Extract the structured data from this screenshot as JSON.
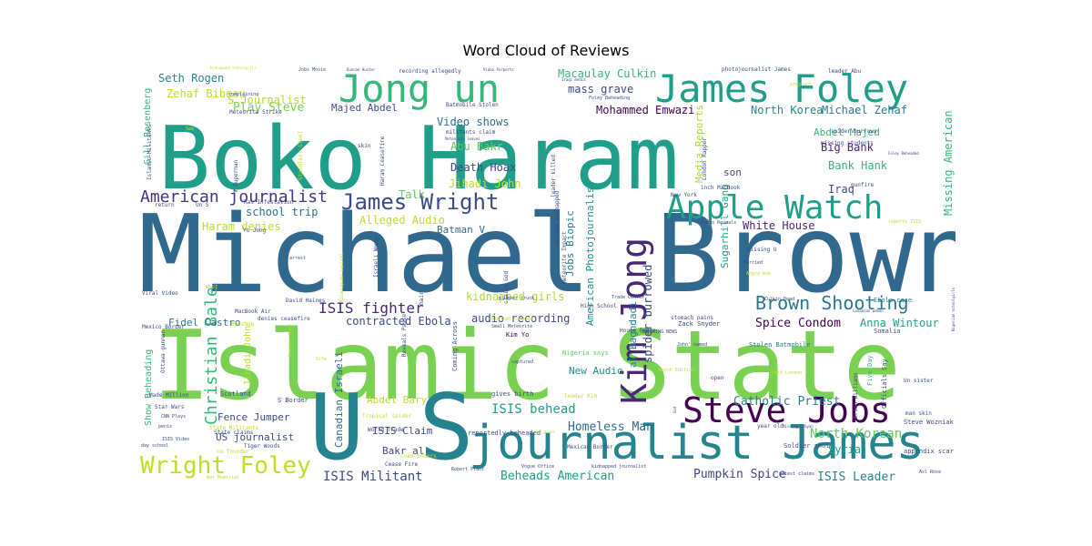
{
  "chart_data": {
    "type": "wordcloud",
    "title": "Word Cloud of Reviews",
    "words": [
      {
        "text": "Michael Brown",
        "color": "#31688e",
        "weight": 100
      },
      {
        "text": "Islamic State",
        "color": "#7ad151",
        "weight": 100
      },
      {
        "text": "Boko Haram",
        "color": "#1f9e89",
        "weight": 95
      },
      {
        "text": "U S",
        "color": "#26828e",
        "weight": 90
      },
      {
        "text": "journalist James",
        "color": "#25858e",
        "weight": 60
      },
      {
        "text": "Jong un",
        "color": "#35b779",
        "weight": 55
      },
      {
        "text": "James Foley",
        "color": "#1f9e89",
        "weight": 55
      },
      {
        "text": "Apple Watch",
        "color": "#1f9e89",
        "weight": 42
      },
      {
        "text": "Kim Jong",
        "color": "#482878",
        "weight": 42
      },
      {
        "text": "Steve Jobs",
        "color": "#440154",
        "weight": 38
      },
      {
        "text": "Wright Foley",
        "color": "#bddf26",
        "weight": 28
      },
      {
        "text": "Brown Shooting",
        "color": "#2a788e",
        "weight": 22
      },
      {
        "text": "James Wright",
        "color": "#3e4a89",
        "weight": 22
      },
      {
        "text": "American journalist",
        "color": "#46327e",
        "weight": 18
      },
      {
        "text": "Christian Bale",
        "color": "#35b779",
        "weight": 18
      },
      {
        "text": "ISIS fighter",
        "color": "#482878",
        "weight": 16
      },
      {
        "text": "Catholic Priest",
        "color": "#26828e",
        "weight": 15
      },
      {
        "text": "North Korean",
        "color": "#5ec962",
        "weight": 14
      },
      {
        "text": "ISIS Militant",
        "color": "#3e4a89",
        "weight": 14
      },
      {
        "text": "Beheads American",
        "color": "#1f9e89",
        "weight": 13
      },
      {
        "text": "ISIS Leader",
        "color": "#25858e",
        "weight": 13
      },
      {
        "text": "Pumpkin Spice",
        "color": "#414487",
        "weight": 13
      },
      {
        "text": "Homeless Man",
        "color": "#31688e",
        "weight": 13
      },
      {
        "text": "ISIS behead",
        "color": "#1f9e89",
        "weight": 13
      },
      {
        "text": "Spice Condom",
        "color": "#440154",
        "weight": 13
      },
      {
        "text": "Anna Wintour",
        "color": "#20a386",
        "weight": 12
      },
      {
        "text": "Mohammed Emwazi",
        "color": "#440154",
        "weight": 13
      },
      {
        "text": "Macaulay Culkin",
        "color": "#35b779",
        "weight": 12
      },
      {
        "text": "mass grave",
        "color": "#3e4a89",
        "weight": 12
      },
      {
        "text": "Play Steve",
        "color": "#7ad151",
        "weight": 12
      },
      {
        "text": "S Journalist",
        "color": "#addc30",
        "weight": 12
      },
      {
        "text": "Seth Rogen",
        "color": "#25858e",
        "weight": 11
      },
      {
        "text": "Zehaf Bibeau",
        "color": "#bddf26",
        "weight": 11
      },
      {
        "text": "Majed Abdel",
        "color": "#3e4a89",
        "weight": 11
      },
      {
        "text": "Video shows",
        "color": "#31688e",
        "weight": 11
      },
      {
        "text": "Abu Bakr",
        "color": "#5ec962",
        "weight": 11
      },
      {
        "text": "Death Hoax",
        "color": "#3e4a89",
        "weight": 11
      },
      {
        "text": "Jihadi John",
        "color": "#bddf26",
        "weight": 11
      },
      {
        "text": "North Korea",
        "color": "#25858e",
        "weight": 12
      },
      {
        "text": "Michael Zehaf",
        "color": "#2a788e",
        "weight": 12
      },
      {
        "text": "Abdel Majed",
        "color": "#35b779",
        "weight": 11
      },
      {
        "text": "Big Bank",
        "color": "#482878",
        "weight": 11
      },
      {
        "text": "Bank Hank",
        "color": "#35b779",
        "weight": 11
      },
      {
        "text": "Iraq",
        "color": "#3e4a89",
        "weight": 11
      },
      {
        "text": "Syria",
        "color": "#1f9e89",
        "weight": 12
      },
      {
        "text": "Missing American",
        "color": "#35b779",
        "weight": 11
      },
      {
        "text": "White House",
        "color": "#482878",
        "weight": 11
      },
      {
        "text": "school trip",
        "color": "#2a788e",
        "weight": 11
      },
      {
        "text": "Talk",
        "color": "#5ec962",
        "weight": 10
      },
      {
        "text": "Haram denies",
        "color": "#bddf26",
        "weight": 11
      },
      {
        "text": "Alleged Audio",
        "color": "#bddf26",
        "weight": 11
      },
      {
        "text": "Batman V",
        "color": "#31688e",
        "weight": 10
      },
      {
        "text": "Jobs Biopic",
        "color": "#26828e",
        "weight": 11
      },
      {
        "text": "American Photojournalist",
        "color": "#21918c",
        "weight": 10
      },
      {
        "text": "kidnapped girls",
        "color": "#addc30",
        "weight": 12
      },
      {
        "text": "audio recording",
        "color": "#3e4a89",
        "weight": 11
      },
      {
        "text": "contracted Ebola",
        "color": "#3e4a89",
        "weight": 11
      },
      {
        "text": "Fidel Castro",
        "color": "#2a788e",
        "weight": 10
      },
      {
        "text": "spider burrowed",
        "color": "#3e4a89",
        "weight": 10
      },
      {
        "text": "Media Reports",
        "color": "#addc30",
        "weight": 10
      },
      {
        "text": "son",
        "color": "#3e4a89",
        "weight": 10
      },
      {
        "text": "Sugarhill Gang",
        "color": "#20a386",
        "weight": 10
      },
      {
        "text": "al Baghdadi",
        "color": "#26828e",
        "weight": 10
      },
      {
        "text": "New Audio",
        "color": "#21918c",
        "weight": 10
      },
      {
        "text": "Abdel Bary",
        "color": "#bddf26",
        "weight": 10
      },
      {
        "text": "ISIS Claim",
        "color": "#414487",
        "weight": 10
      },
      {
        "text": "Bakr al",
        "color": "#3e4a89",
        "weight": 10
      },
      {
        "text": "Fence Jumper",
        "color": "#3e4a89",
        "weight": 10
      },
      {
        "text": "US journalist",
        "color": "#3e4a89",
        "weight": 10
      },
      {
        "text": "Canadian Israeli",
        "color": "#31688e",
        "weight": 9
      },
      {
        "text": "Gill Rosenberg",
        "color": "#35b779",
        "weight": 9
      },
      {
        "text": "Show Beheading",
        "color": "#35b779",
        "weight": 9
      },
      {
        "text": "Jihadi John'",
        "color": "#bddf26",
        "weight": 9
      },
      {
        "text": "Zack Snyder",
        "color": "#3e4a89",
        "weight": 6
      },
      {
        "text": "Nigeria says",
        "color": "#5ec962",
        "weight": 6
      },
      {
        "text": "Kim Yo",
        "color": "#440154",
        "weight": 6
      },
      {
        "text": "Stolen Batmobile",
        "color": "#2a788e",
        "weight": 6
      },
      {
        "text": "Ebola case",
        "color": "#2a788e",
        "weight": 6
      },
      {
        "text": "Somalia",
        "color": "#3e4a89",
        "weight": 6
      },
      {
        "text": "Steve Wozniak",
        "color": "#3e4a89",
        "weight": 6
      },
      {
        "text": "appendix scar",
        "color": "#3e4a89",
        "weight": 6
      },
      {
        "text": "Soldier shot",
        "color": "#3e4a89",
        "weight": 6
      },
      {
        "text": "Five Day",
        "color": "#35b779",
        "weight": 6
      },
      {
        "text": "Officials Say",
        "color": "#3e4a89",
        "weight": 6
      },
      {
        "text": "gives birth",
        "color": "#3e4a89",
        "weight": 6
      },
      {
        "text": "reportedly beheaded",
        "color": "#3e4a89",
        "weight": 6
      },
      {
        "text": "Coming Across",
        "color": "#3e4a89",
        "weight": 5
      },
      {
        "text": "Mexican Border",
        "color": "#3e4a89",
        "weight": 5
      },
      {
        "text": "Tropical spider",
        "color": "#bddf26",
        "weight": 5
      },
      {
        "text": "World Trade",
        "color": "#3e4a89",
        "weight": 5
      },
      {
        "text": "Cease Fire",
        "color": "#3e4a89",
        "weight": 5
      },
      {
        "text": "Scotland",
        "color": "#3e4a89",
        "weight": 6
      },
      {
        "text": "Made Million",
        "color": "#3e4a89",
        "weight": 5
      },
      {
        "text": "Star Wars",
        "color": "#3e4a89",
        "weight": 5
      },
      {
        "text": "Tiger Woods",
        "color": "#3e4a89",
        "weight": 5
      },
      {
        "text": "State claims",
        "color": "#3e4a89",
        "weight": 5
      },
      {
        "text": "co founder",
        "color": "#bddf26",
        "weight": 5
      },
      {
        "text": "ISIS Video",
        "color": "#3e4a89",
        "weight": 4
      },
      {
        "text": "CNN Plays",
        "color": "#3e4a89",
        "weight": 4
      },
      {
        "text": "penis",
        "color": "#3e4a89",
        "weight": 4
      },
      {
        "text": "Viral Video",
        "color": "#3e4a89",
        "weight": 5
      },
      {
        "text": "Mexico Border",
        "color": "#3e4a89",
        "weight": 5
      },
      {
        "text": "MacBook Air",
        "color": "#3e4a89",
        "weight": 5
      },
      {
        "text": "David Haines",
        "color": "#3e4a89",
        "weight": 5
      },
      {
        "text": "denies ceasefire",
        "color": "#3e4a89",
        "weight": 5
      },
      {
        "text": "Yo Jong",
        "color": "#3e4a89",
        "weight": 5
      },
      {
        "text": "Korean leader",
        "color": "#bddf26",
        "weight": 5
      },
      {
        "text": "Small Meteorite",
        "color": "#3e4a89",
        "weight": 5
      },
      {
        "text": "High School",
        "color": "#3e4a89",
        "weight": 5
      },
      {
        "text": "House Fence",
        "color": "#3e4a89",
        "weight": 5
      },
      {
        "text": "stomach pains",
        "color": "#3e4a89",
        "weight": 5
      },
      {
        "text": "BREAKING NEWS",
        "color": "#3e4a89",
        "weight": 4
      },
      {
        "text": "Trade Center",
        "color": "#3e4a89",
        "weight": 4
      },
      {
        "text": "Angry mob",
        "color": "#bddf26",
        "weight": 4
      },
      {
        "text": "missing U",
        "color": "#3e4a89",
        "weight": 5
      },
      {
        "text": "New York",
        "color": "#3e4a89",
        "weight": 5
      },
      {
        "text": "inch MacBook",
        "color": "#3e4a89",
        "weight": 5
      },
      {
        "text": "Audio Reveals",
        "color": "#3e4a89",
        "weight": 4
      },
      {
        "text": "reports ISIS",
        "color": "#bddf26",
        "weight": 4
      },
      {
        "text": "Culkin Dead",
        "color": "#3e4a89",
        "weight": 4
      },
      {
        "text": "missing students",
        "color": "#3e4a89",
        "weight": 4
      },
      {
        "text": "spider burrows",
        "color": "#3e4a89",
        "weight": 4
      },
      {
        "text": "gunfire",
        "color": "#3e4a89",
        "weight": 4
      },
      {
        "text": "Foley Beheaded",
        "color": "#3e4a89",
        "weight": 3
      },
      {
        "text": "man skin",
        "color": "#3e4a89",
        "weight": 4
      },
      {
        "text": "Un sister",
        "color": "#3e4a89",
        "weight": 4
      },
      {
        "text": "year old",
        "color": "#3e4a89",
        "weight": 4
      },
      {
        "text": "Missing Libyan",
        "color": "#3e4a89",
        "weight": 3
      },
      {
        "text": "Brian Williams",
        "color": "#3e4a89",
        "weight": 4
      },
      {
        "text": "Nigerian schoolgirls",
        "color": "#3e4a89",
        "weight": 3
      },
      {
        "text": "Canadian woman",
        "color": "#3e4a89",
        "weight": 3
      },
      {
        "text": "Ottawa gunman",
        "color": "#3e4a89",
        "weight": 4
      },
      {
        "text": "leader Abu",
        "color": "#3e4a89",
        "weight": 4
      },
      {
        "text": "photojournalist James",
        "color": "#3e4a89",
        "weight": 4
      },
      {
        "text": "recording allegedly",
        "color": "#3e4a89",
        "weight": 4
      },
      {
        "text": "Jobs Movie",
        "color": "#3e4a89",
        "weight": 3
      },
      {
        "text": "Duncan Hunter",
        "color": "#3e4a89",
        "weight": 3
      },
      {
        "text": "kidnapped schoolgirls",
        "color": "#bddf26",
        "weight": 3
      },
      {
        "text": "Video Purports",
        "color": "#3e4a89",
        "weight": 3
      },
      {
        "text": "Iraqi media",
        "color": "#3e4a89",
        "weight": 3
      },
      {
        "text": "Meteorite Strike",
        "color": "#3e4a89",
        "weight": 4
      },
      {
        "text": "Batmobile Stolen",
        "color": "#3e4a89",
        "weight": 4
      },
      {
        "text": "militants claim",
        "color": "#3e4a89",
        "weight": 4
      },
      {
        "text": "Meteorite leaves",
        "color": "#3e4a89",
        "weight": 3
      },
      {
        "text": "complaining",
        "color": "#3e4a89",
        "weight": 3
      },
      {
        "text": "pregnant",
        "color": "#bddf26",
        "weight": 3
      },
      {
        "text": "Foley Beheading",
        "color": "#3e4a89",
        "weight": 3
      },
      {
        "text": "Rat Infestation",
        "color": "#3e4a89",
        "weight": 4
      },
      {
        "text": "leader killed",
        "color": "#3e4a89",
        "weight": 4
      },
      {
        "text": "release kidnapped",
        "color": "#3e4a89",
        "weight": 4
      },
      {
        "text": "Meteorite Impact",
        "color": "#3e4a89",
        "weight": 4
      },
      {
        "text": "claims God",
        "color": "#3e4a89",
        "weight": 4
      },
      {
        "text": "Reveals Pause",
        "color": "#3e4a89",
        "weight": 4
      },
      {
        "text": "hair",
        "color": "#3e4a89",
        "weight": 4
      },
      {
        "text": "Israeli Woman",
        "color": "#3e4a89",
        "weight": 4
      },
      {
        "text": "arrest",
        "color": "#3e4a89",
        "weight": 3
      },
      {
        "text": "shot",
        "color": "#bddf26",
        "weight": 4
      },
      {
        "text": "return",
        "color": "#3e4a89",
        "weight": 4
      },
      {
        "text": "Un S",
        "color": "#3e4a89",
        "weight": 4
      },
      {
        "text": "V Superman",
        "color": "#3e4a89",
        "weight": 4
      },
      {
        "text": "skin",
        "color": "#3e4a89",
        "weight": 4
      },
      {
        "text": "Islamic Militants",
        "color": "#3e4a89",
        "weight": 4
      },
      {
        "text": "Stainless Steel",
        "color": "#bddf26",
        "weight": 4
      },
      {
        "text": "Haram Ceasefire",
        "color": "#3e4a89",
        "weight": 4
      },
      {
        "text": "Luke Somers",
        "color": "#bddf26",
        "weight": 4
      },
      {
        "text": "Robert Plant",
        "color": "#3e4a89",
        "weight": 3
      },
      {
        "text": "Vogue Office",
        "color": "#3e4a89",
        "weight": 3
      },
      {
        "text": "kidnapped journalist",
        "color": "#3e4a89",
        "weight": 3
      },
      {
        "text": "priest claims",
        "color": "#3e4a89",
        "weight": 3
      },
      {
        "text": "Axl Rose",
        "color": "#3e4a89",
        "weight": 3
      },
      {
        "text": "War Memorial",
        "color": "#bddf26",
        "weight": 3
      },
      {
        "text": "day school",
        "color": "#3e4a89",
        "weight": 3
      },
      {
        "text": "Nun gives",
        "color": "#bddf26",
        "weight": 3
      },
      {
        "text": "Predictor Drone",
        "color": "#bddf26",
        "weight": 3
      },
      {
        "text": "captured",
        "color": "#3e4a89",
        "weight": 3
      },
      {
        "text": "plumber truck",
        "color": "#3e4a89",
        "weight": 3
      },
      {
        "text": "Watch Edition",
        "color": "#bddf26",
        "weight": 3
      },
      {
        "text": "John' named",
        "color": "#3e4a89",
        "weight": 3
      },
      {
        "text": "West London",
        "color": "#bddf26",
        "weight": 3
      },
      {
        "text": "open",
        "color": "#3e4a89",
        "weight": 4
      },
      {
        "text": "Married",
        "color": "#3e4a89",
        "weight": 3
      },
      {
        "text": "London Rapper",
        "color": "#3e4a89",
        "weight": 4
      },
      {
        "text": "Nicaraguan capital",
        "color": "#bddf26",
        "weight": 3
      },
      {
        "text": "State Militants",
        "color": "#bddf26",
        "weight": 4
      },
      {
        "text": "S Border",
        "color": "#3e4a89",
        "weight": 5
      },
      {
        "text": "leader Kim",
        "color": "#bddf26",
        "weight": 4
      },
      {
        "text": "Message",
        "color": "#bddf26",
        "weight": 4
      },
      {
        "text": "God",
        "color": "#3e4a89",
        "weight": 3
      },
      {
        "text": "Sife",
        "color": "#bddf26",
        "weight": 3
      },
      {
        "text": "See",
        "color": "#bddf26",
        "weight": 3
      }
    ]
  }
}
